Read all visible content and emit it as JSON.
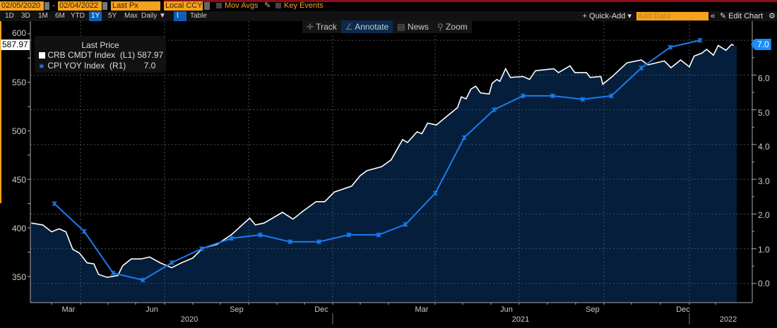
{
  "toolbar": {
    "start_date": "02/05/2020",
    "end_date": "02/04/2022",
    "separator": "-",
    "field": "Last Px",
    "currency": "Local CCY",
    "mov_avgs": "Mov Avgs",
    "key_events": "Key Events",
    "ranges": [
      "1D",
      "3D",
      "1M",
      "6M",
      "YTD",
      "1Y",
      "5Y",
      "Max"
    ],
    "selected_range": "1Y",
    "frequency": "Daily ▼",
    "table": "Table",
    "quick_add": "+ Quick-Add ▾",
    "add_data_placeholder": "Add Data",
    "collapse": "«",
    "edit_chart": "✎ Edit Chart",
    "settings": "⚙"
  },
  "chart_tools": [
    {
      "icon": "crosshair-icon",
      "glyph": "✛",
      "label": "Track"
    },
    {
      "icon": "pencil-icon",
      "glyph": "∠",
      "label": "Annotate"
    },
    {
      "icon": "news-icon",
      "glyph": "▤",
      "label": "News"
    },
    {
      "icon": "magnifier-icon",
      "glyph": "⚲",
      "label": "Zoom"
    }
  ],
  "colors": {
    "crb": "#ffffff",
    "cpi": "#1a7cf0",
    "fill": "#041e3c",
    "accent": "#f5a21c"
  },
  "chart_data": {
    "type": "line",
    "legend": {
      "title": "Last Price",
      "placement": "top-left",
      "entries": [
        {
          "name": "CRB CMDT Index  (L1)",
          "value": "587.97"
        },
        {
          "name": "CPI YOY Index  (R1)",
          "value": "7.0"
        }
      ]
    },
    "left_axis": {
      "ticks": [
        "600",
        "550",
        "500",
        "450",
        "400",
        "350"
      ],
      "range": [
        323,
        613
      ],
      "last_value": "587.97"
    },
    "right_axis": {
      "ticks": [
        "7.0",
        "6.0",
        "5.0",
        "4.0",
        "3.0",
        "2.0",
        "1.0",
        "0.0"
      ],
      "range": [
        -0.55,
        7.55
      ],
      "last_value": "7.0"
    },
    "x_axis": {
      "months": [
        "Mar",
        "Jun",
        "Sep",
        "Dec",
        "Mar",
        "Jun",
        "Sep",
        "Dec"
      ],
      "years": [
        "2020",
        "2021",
        "2022"
      ],
      "range": [
        "2020-02-05",
        "2022-02-04"
      ]
    },
    "grid": true,
    "series": [
      {
        "name": "CRB CMDT Index",
        "axis": "left",
        "style": "area",
        "points": [
          [
            "2020-02-05",
            405
          ],
          [
            "2020-02-17",
            403
          ],
          [
            "2020-02-26",
            396
          ],
          [
            "2020-03-05",
            399
          ],
          [
            "2020-03-12",
            396
          ],
          [
            "2020-03-19",
            378
          ],
          [
            "2020-03-26",
            374
          ],
          [
            "2020-04-03",
            364
          ],
          [
            "2020-04-10",
            363
          ],
          [
            "2020-04-15",
            352
          ],
          [
            "2020-04-24",
            349
          ],
          [
            "2020-05-05",
            351
          ],
          [
            "2020-05-10",
            361
          ],
          [
            "2020-05-19",
            368
          ],
          [
            "2020-05-29",
            368
          ],
          [
            "2020-06-07",
            370
          ],
          [
            "2020-06-18",
            364
          ],
          [
            "2020-06-30",
            359
          ],
          [
            "2020-07-10",
            364
          ],
          [
            "2020-07-22",
            369
          ],
          [
            "2020-08-01",
            379
          ],
          [
            "2020-08-16",
            383
          ],
          [
            "2020-08-31",
            393
          ],
          [
            "2020-09-19",
            410
          ],
          [
            "2020-09-25",
            403
          ],
          [
            "2020-10-04",
            405
          ],
          [
            "2020-10-23",
            416
          ],
          [
            "2020-11-03",
            409
          ],
          [
            "2020-11-13",
            417
          ],
          [
            "2020-11-27",
            427
          ],
          [
            "2020-12-06",
            427
          ],
          [
            "2020-12-16",
            437
          ],
          [
            "2021-01-03",
            443
          ],
          [
            "2021-01-12",
            454
          ],
          [
            "2021-01-19",
            459
          ],
          [
            "2021-02-03",
            463
          ],
          [
            "2021-02-13",
            470
          ],
          [
            "2021-02-25",
            491
          ],
          [
            "2021-03-02",
            488
          ],
          [
            "2021-03-12",
            499
          ],
          [
            "2021-03-17",
            497
          ],
          [
            "2021-03-23",
            508
          ],
          [
            "2021-04-01",
            506
          ],
          [
            "2021-04-12",
            515
          ],
          [
            "2021-04-23",
            524
          ],
          [
            "2021-04-27",
            535
          ],
          [
            "2021-05-02",
            533
          ],
          [
            "2021-05-07",
            543
          ],
          [
            "2021-05-12",
            546
          ],
          [
            "2021-05-17",
            539
          ],
          [
            "2021-05-26",
            538
          ],
          [
            "2021-05-29",
            549
          ],
          [
            "2021-06-03",
            553
          ],
          [
            "2021-06-06",
            551
          ],
          [
            "2021-06-12",
            564
          ],
          [
            "2021-06-17",
            555
          ],
          [
            "2021-06-30",
            556
          ],
          [
            "2021-07-07",
            553
          ],
          [
            "2021-07-13",
            562
          ],
          [
            "2021-08-01",
            564
          ],
          [
            "2021-08-06",
            560
          ],
          [
            "2021-08-18",
            567
          ],
          [
            "2021-08-23",
            560
          ],
          [
            "2021-09-04",
            560
          ],
          [
            "2021-09-08",
            555
          ],
          [
            "2021-09-19",
            556
          ],
          [
            "2021-09-21",
            548
          ],
          [
            "2021-10-01",
            556
          ],
          [
            "2021-10-16",
            570
          ],
          [
            "2021-10-31",
            573
          ],
          [
            "2021-11-07",
            568
          ],
          [
            "2021-11-24",
            572
          ],
          [
            "2021-12-01",
            565
          ],
          [
            "2021-12-11",
            573
          ],
          [
            "2021-12-20",
            566
          ],
          [
            "2021-12-25",
            577
          ],
          [
            "2022-01-02",
            580
          ],
          [
            "2022-01-07",
            584
          ],
          [
            "2022-01-14",
            578
          ],
          [
            "2022-01-19",
            588
          ],
          [
            "2022-01-27",
            583
          ],
          [
            "2022-02-02",
            589
          ],
          [
            "2022-02-04",
            587.97
          ]
        ]
      },
      {
        "name": "CPI YOY Index",
        "axis": "right",
        "style": "line-markers",
        "points": [
          [
            "2020-02-29",
            2.3
          ],
          [
            "2020-03-31",
            1.5
          ],
          [
            "2020-04-30",
            0.3
          ],
          [
            "2020-05-31",
            0.1
          ],
          [
            "2020-06-30",
            0.6
          ],
          [
            "2020-07-31",
            1.0
          ],
          [
            "2020-08-31",
            1.3
          ],
          [
            "2020-09-30",
            1.4
          ],
          [
            "2020-10-31",
            1.2
          ],
          [
            "2020-11-30",
            1.2
          ],
          [
            "2020-12-31",
            1.4
          ],
          [
            "2021-01-31",
            1.4
          ],
          [
            "2021-02-28",
            1.7
          ],
          [
            "2021-03-31",
            2.6
          ],
          [
            "2021-04-30",
            4.2
          ],
          [
            "2021-05-31",
            5.0
          ],
          [
            "2021-06-30",
            5.4
          ],
          [
            "2021-07-31",
            5.4
          ],
          [
            "2021-08-31",
            5.3
          ],
          [
            "2021-09-30",
            5.4
          ],
          [
            "2021-10-31",
            6.2
          ],
          [
            "2021-11-30",
            6.8
          ],
          [
            "2021-12-31",
            7.0
          ]
        ]
      }
    ]
  }
}
